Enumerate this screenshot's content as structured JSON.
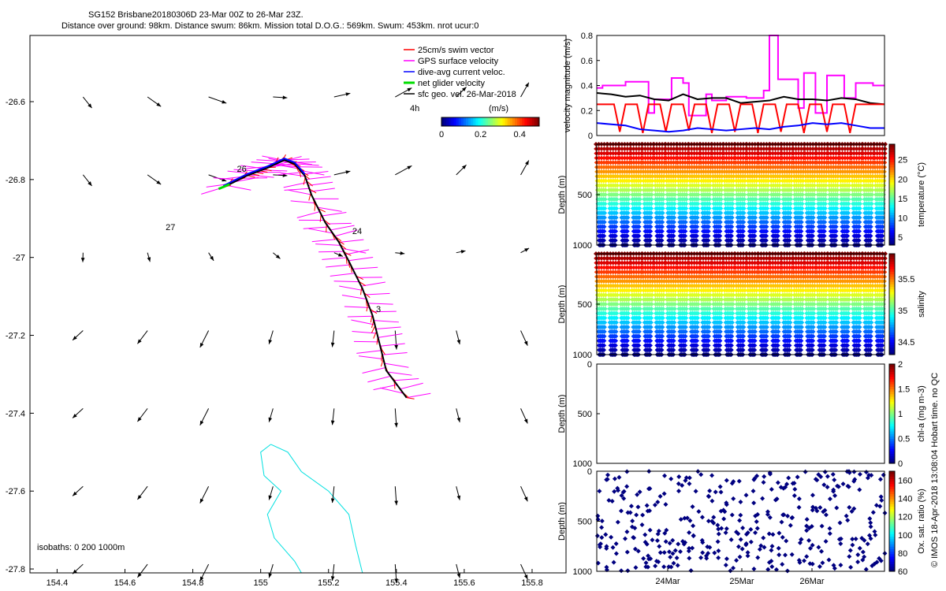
{
  "header": {
    "line1": "SG152 Brisbane20180306D 23-Mar 00Z to 26-Mar 23Z.",
    "line2": "Distance over ground: 98km. Distance swum: 86km. Mission total D.O.G.: 569km. Swum: 453km. nrot ucur:0"
  },
  "credit": "© IMOS 18-Apr-2018 13:08:04 Hobart time. no QC",
  "map": {
    "xlim": [
      154.32,
      155.9
    ],
    "ylim": [
      -27.81,
      -26.43
    ],
    "xticks": [
      "154.4",
      "154.6",
      "154.8",
      "155",
      "155.2",
      "155.4",
      "155.6",
      "155.8"
    ],
    "yticks": [
      "-26.6",
      "-26.8",
      "-27",
      "-27.2",
      "-27.4",
      "-27.6",
      "-27.8"
    ],
    "day_labels": [
      {
        "text": "27",
        "lon": 154.72,
        "lat": -26.93
      },
      {
        "text": "26",
        "lon": 154.93,
        "lat": -26.78
      },
      {
        "text": "24",
        "lon": 155.27,
        "lat": -26.94
      },
      {
        "text": "3",
        "lon": 155.34,
        "lat": -27.14
      }
    ],
    "legend": [
      {
        "label": "25cm/s swim vector",
        "color": "#ff0000"
      },
      {
        "label": "GPS surface velocity",
        "color": "#ff00ff"
      },
      {
        "label": "dive-avg current veloc.",
        "color": "#0000ff"
      },
      {
        "label": "net glider velocity",
        "color": "#00dd00"
      },
      {
        "label": "sfc geo. vel. 26-Mar-2018",
        "color": "#000000"
      }
    ],
    "legend_extra": "4h",
    "colorbar_title": "(m/s)",
    "colorbar_ticks": [
      "0",
      "0.2",
      "0.4"
    ],
    "colorbar_range": [
      0,
      0.5
    ],
    "isobaths_label": "isobaths: 0   200   1000m",
    "isobath_color": "#00e0e0"
  },
  "chart_data": [
    {
      "type": "line",
      "title": "",
      "ylabel": "velocity magnitude (m/s)",
      "ylim": [
        0,
        0.8
      ],
      "yticks": [
        "0",
        "0.2",
        "0.4",
        "0.6",
        "0.8"
      ],
      "series": [
        {
          "color": "#ff00ff",
          "x": [
            0,
            0.02,
            0.02,
            0.1,
            0.1,
            0.18,
            0.18,
            0.2,
            0.2,
            0.26,
            0.26,
            0.3,
            0.3,
            0.32,
            0.32,
            0.38,
            0.38,
            0.4,
            0.4,
            0.45,
            0.45,
            0.52,
            0.52,
            0.58,
            0.58,
            0.6,
            0.6,
            0.63,
            0.63,
            0.7,
            0.7,
            0.72,
            0.72,
            0.76,
            0.76,
            0.8,
            0.8,
            0.86,
            0.86,
            0.9,
            0.9,
            0.96,
            0.96,
            1
          ],
          "y": [
            0.38,
            0.38,
            0.4,
            0.4,
            0.43,
            0.43,
            0.18,
            0.18,
            0.29,
            0.29,
            0.46,
            0.46,
            0.42,
            0.42,
            0.16,
            0.16,
            0.33,
            0.33,
            0.28,
            0.28,
            0.31,
            0.31,
            0.3,
            0.3,
            0.36,
            0.36,
            0.8,
            0.8,
            0.45,
            0.45,
            0.22,
            0.22,
            0.5,
            0.5,
            0.18,
            0.18,
            0.48,
            0.48,
            0.3,
            0.3,
            0.42,
            0.42,
            0.4,
            0.4
          ]
        },
        {
          "color": "#000000",
          "x": [
            0,
            0.05,
            0.1,
            0.15,
            0.2,
            0.25,
            0.3,
            0.35,
            0.4,
            0.45,
            0.5,
            0.55,
            0.6,
            0.65,
            0.7,
            0.75,
            0.8,
            0.85,
            0.9,
            0.95,
            1
          ],
          "y": [
            0.34,
            0.33,
            0.31,
            0.32,
            0.29,
            0.28,
            0.33,
            0.29,
            0.3,
            0.3,
            0.26,
            0.27,
            0.28,
            0.31,
            0.29,
            0.29,
            0.28,
            0.3,
            0.29,
            0.26,
            0.25
          ]
        },
        {
          "color": "#ff0000",
          "x": [
            0,
            0.02,
            0.04,
            0.06,
            0.08,
            0.1,
            0.12,
            0.14,
            0.16,
            0.18,
            0.2,
            0.22,
            0.24,
            0.26,
            0.28,
            0.3,
            0.32,
            0.34,
            0.36,
            0.38,
            0.4,
            0.42,
            0.44,
            0.46,
            0.48,
            0.5,
            0.52,
            0.54,
            0.56,
            0.58,
            0.6,
            0.62,
            0.64,
            0.66,
            0.68,
            0.7,
            0.72,
            0.74,
            0.76,
            0.78,
            0.8,
            0.82,
            0.84,
            0.86,
            0.88,
            0.9,
            0.92,
            0.94,
            0.96,
            0.98,
            1
          ],
          "y": [
            0.25,
            0.25,
            0.25,
            0.25,
            0.03,
            0.25,
            0.25,
            0.25,
            0.02,
            0.25,
            0.25,
            0.25,
            0.03,
            0.25,
            0.25,
            0.25,
            0.04,
            0.25,
            0.25,
            0.25,
            0.02,
            0.25,
            0.25,
            0.25,
            0.03,
            0.25,
            0.25,
            0.25,
            0.02,
            0.25,
            0.25,
            0.25,
            0.03,
            0.25,
            0.25,
            0.25,
            0.02,
            0.25,
            0.25,
            0.25,
            0.03,
            0.25,
            0.25,
            0.25,
            0.02,
            0.25,
            0.25,
            0.25,
            0.25,
            0.25,
            0.25
          ]
        },
        {
          "color": "#0000ff",
          "x": [
            0,
            0.05,
            0.1,
            0.15,
            0.2,
            0.25,
            0.3,
            0.35,
            0.4,
            0.45,
            0.5,
            0.55,
            0.6,
            0.65,
            0.7,
            0.75,
            0.8,
            0.85,
            0.9,
            0.95,
            1
          ],
          "y": [
            0.1,
            0.09,
            0.08,
            0.05,
            0.04,
            0.03,
            0.04,
            0.06,
            0.05,
            0.04,
            0.05,
            0.06,
            0.05,
            0.07,
            0.08,
            0.1,
            0.09,
            0.1,
            0.08,
            0.06,
            0.06
          ]
        }
      ]
    },
    {
      "type": "scatter",
      "xlabel": "",
      "ylabel": "Depth (m)",
      "ylim": [
        1000,
        0
      ],
      "yticks": [
        "500",
        "1000"
      ],
      "colorbar_label": "temperature (°C)",
      "colorbar_ticks": [
        "5",
        "10",
        "15",
        "20",
        "25"
      ],
      "colorbar_range": [
        3,
        29
      ],
      "profiles": 25,
      "max_depth": 1000
    },
    {
      "type": "scatter",
      "xlabel": "",
      "ylabel": "Depth (m)",
      "ylim": [
        1000,
        0
      ],
      "yticks": [
        "500",
        "1000"
      ],
      "colorbar_label": "salinity",
      "colorbar_ticks": [
        "34.5",
        "35",
        "35.5"
      ],
      "colorbar_range": [
        34.3,
        35.9
      ],
      "profiles": 25,
      "max_depth": 1000
    },
    {
      "type": "scatter",
      "xlabel": "",
      "ylabel": "Depth (m)",
      "ylim": [
        1000,
        0
      ],
      "yticks": [
        "0",
        "500",
        "1000"
      ],
      "colorbar_label": "chl-a (mg m-3)",
      "colorbar_ticks": [
        "0",
        "0.5",
        "1",
        "1.5",
        "2"
      ],
      "colorbar_range": [
        0,
        2
      ],
      "profiles": 0
    },
    {
      "type": "scatter",
      "xlabel": "",
      "ylabel": "Depth (m)",
      "ylim": [
        1000,
        0
      ],
      "yticks": [
        "0",
        "500",
        "1000"
      ],
      "colorbar_label": "Ox. sat. ratio (%)",
      "colorbar_ticks": [
        "60",
        "80",
        "100",
        "120",
        "140",
        "160"
      ],
      "colorbar_range": [
        60,
        170
      ],
      "xticks": [
        "24Mar",
        "25Mar",
        "26Mar"
      ],
      "profiles": 28
    }
  ]
}
